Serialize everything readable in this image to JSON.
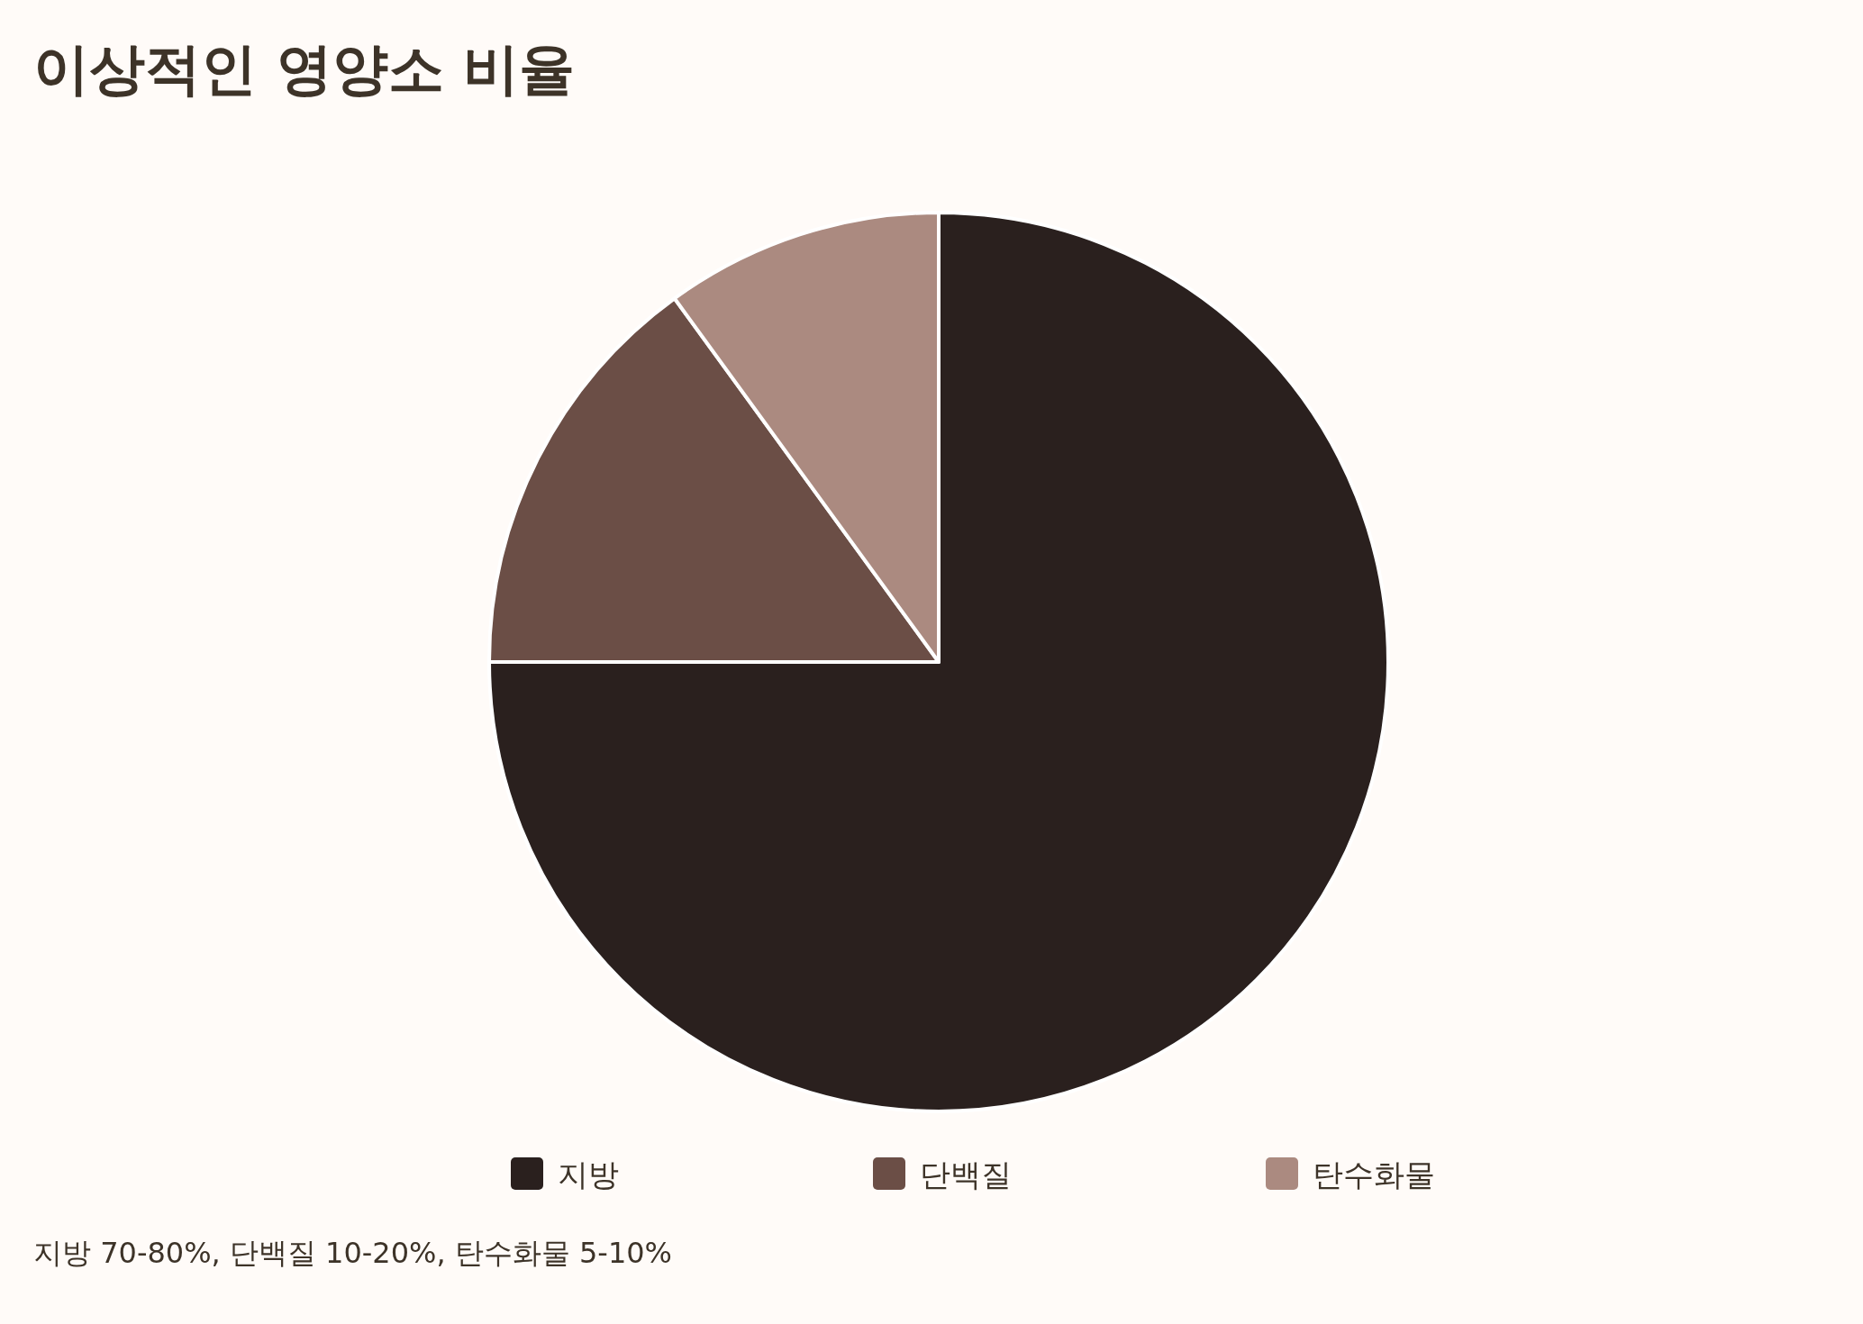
{
  "chart_data": {
    "type": "pie",
    "title": "이상적인 영양소 비율",
    "categories": [
      "지방",
      "단백질",
      "탄수화물"
    ],
    "values": [
      75,
      15,
      10
    ],
    "colors": [
      "#2a201e",
      "#6b4e46",
      "#ab8a80"
    ],
    "legend": "bottom",
    "annotations": [
      "지방 70-80%, 단백질 10-20%, 탄수화물 5-10%"
    ]
  }
}
